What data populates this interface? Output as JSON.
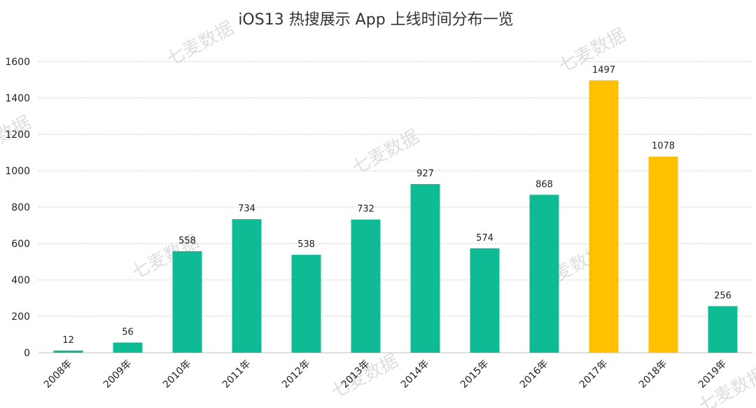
{
  "watermark_text": "七麦数据",
  "chart_data": {
    "type": "bar",
    "title": "iOS13 热搜展示 App 上线时间分布一览",
    "xlabel": "",
    "ylabel": "",
    "categories": [
      "2008年",
      "2009年",
      "2010年",
      "2011年",
      "2012年",
      "2013年",
      "2014年",
      "2015年",
      "2016年",
      "2017年",
      "2018年",
      "2019年"
    ],
    "values": [
      12,
      56,
      558,
      734,
      538,
      732,
      927,
      574,
      868,
      1497,
      1078,
      256
    ],
    "highlight": [
      false,
      false,
      false,
      false,
      false,
      false,
      false,
      false,
      false,
      true,
      true,
      false
    ],
    "ylim": [
      0,
      1600
    ],
    "yticks": [
      0,
      200,
      400,
      600,
      800,
      1000,
      1200,
      1400,
      1600
    ],
    "grid": true,
    "colors": {
      "bar": "#0fbb95",
      "highlight": "#ffc000"
    }
  }
}
